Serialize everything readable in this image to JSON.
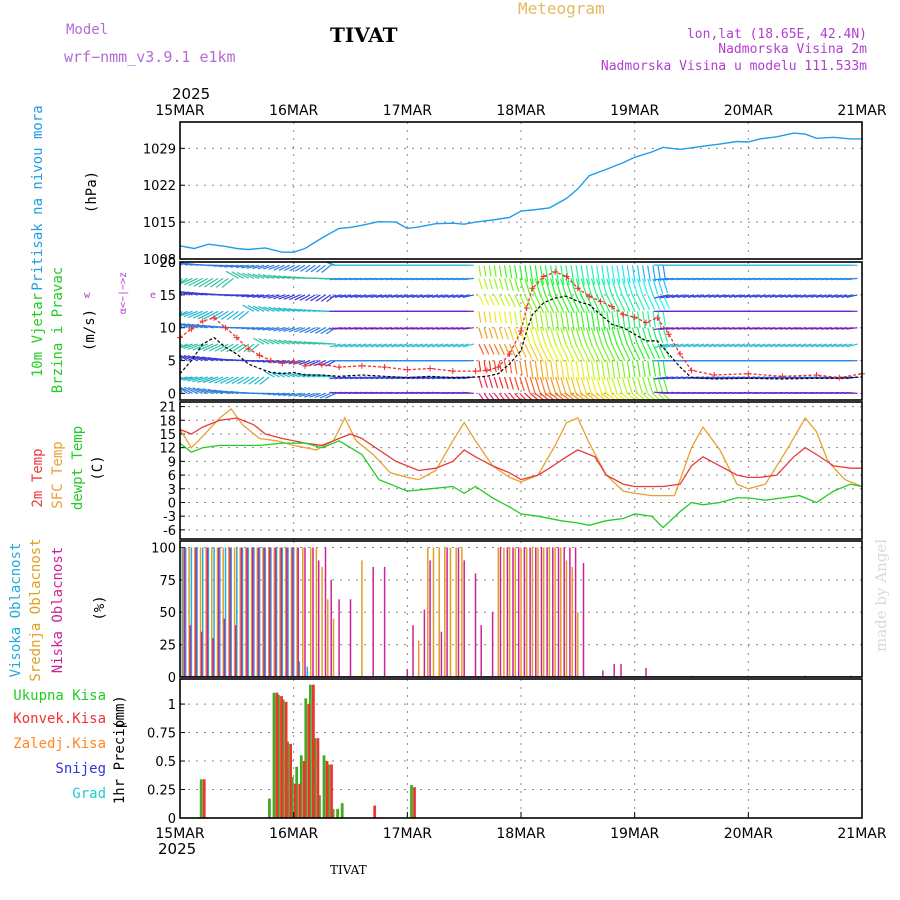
{
  "header": {
    "model_label": "Model",
    "model_name": "wrf−nmm_v3.9.1  e1km",
    "station": "TIVAT",
    "title": "Meteogram",
    "lonlat": "lon,lat (18.65E, 42.4N)",
    "elevation": "Nadmorska Visina 2m",
    "model_elevation": "Nadmorska Visina u modelu 111.533m",
    "footer_station": "TIVAT",
    "credit": "made by Angel"
  },
  "colors": {
    "pressure": "#1f9ee8",
    "wind_speed": "#000000",
    "wind_gust": "#ee3030",
    "temp_2m": "#e83c3c",
    "temp_sfc": "#e8a030",
    "dewpoint": "#22cc22",
    "cloud_high": "#22aadd",
    "cloud_mid": "#e0a020",
    "cloud_low": "#cc2299",
    "precip_total": "#44aa22",
    "precip_conv": "#ee3333",
    "precip_frz": "#ff8822",
    "snow": "#3333dd",
    "hail": "#22cccc"
  },
  "chart_data": [
    {
      "type": "line",
      "panel": "pressure",
      "ylabel": "Pritisak na nivou mora",
      "yunit": "(hPa)",
      "xlabels": [
        "15MAR",
        "16MAR",
        "17MAR",
        "18MAR",
        "19MAR",
        "20MAR",
        "21MAR"
      ],
      "xyear": "2025",
      "ylim": [
        1008,
        1034
      ],
      "yticks": [
        "1008",
        "1015",
        "1022",
        "1029"
      ],
      "grid": true,
      "x_days": [
        0,
        0.125,
        0.25,
        0.4,
        0.5,
        0.6,
        0.75,
        0.9,
        1.0,
        1.1,
        1.25,
        1.4,
        1.5,
        1.6,
        1.75,
        1.9,
        2.0,
        2.1,
        2.25,
        2.4,
        2.5,
        2.6,
        2.75,
        2.9,
        3.0,
        3.1,
        3.25,
        3.4,
        3.5,
        3.6,
        3.75,
        3.9,
        4.0,
        4.15,
        4.25,
        4.4,
        4.6,
        4.75,
        4.9,
        5.0,
        5.1,
        5.25,
        5.4,
        5.5,
        5.6,
        5.75,
        5.9,
        6.0
      ],
      "y": [
        1010.5,
        1010.0,
        1010.8,
        1010.4,
        1010.0,
        1009.8,
        1010.1,
        1009.3,
        1009.3,
        1010.0,
        1012.0,
        1013.8,
        1014.0,
        1014.4,
        1015.1,
        1015.0,
        1013.8,
        1014.1,
        1014.7,
        1014.8,
        1014.6,
        1015.0,
        1015.4,
        1015.9,
        1017.1,
        1017.3,
        1017.7,
        1019.5,
        1021.3,
        1023.8,
        1025.0,
        1026.3,
        1027.3,
        1028.3,
        1029.2,
        1028.8,
        1029.4,
        1029.8,
        1030.3,
        1030.2,
        1030.8,
        1031.2,
        1031.9,
        1031.7,
        1030.9,
        1031.1,
        1030.8,
        1030.8
      ]
    },
    {
      "type": "line",
      "panel": "wind",
      "ylabel": "10m Vjetar",
      "ylabel2": "Brzina i Pravac",
      "yunit": "(m/s)",
      "compass": "α<−|−>z",
      "compass_w": "w",
      "compass_e": "e",
      "ylim": [
        -1,
        20
      ],
      "yticks": [
        "0",
        "5",
        "10",
        "15",
        "20"
      ],
      "grid": true,
      "series": [
        {
          "x": [
            0,
            0.1,
            0.2,
            0.3,
            0.4,
            0.5,
            0.6,
            0.7,
            0.8,
            0.9,
            1.0,
            1.1,
            1.25,
            1.4,
            1.6,
            1.8,
            2.0,
            2.2,
            2.4,
            2.6,
            2.7,
            2.8,
            2.9,
            3.0,
            3.05,
            3.1,
            3.2,
            3.3,
            3.4,
            3.5,
            3.6,
            3.7,
            3.8,
            3.9,
            4.0,
            4.1,
            4.2,
            4.3,
            4.4,
            4.5,
            4.7,
            5.0,
            5.3,
            5.6,
            5.8,
            6.0
          ],
          "y": [
            3.0,
            5.0,
            7.5,
            8.5,
            7.0,
            6.0,
            4.5,
            3.8,
            3.2,
            3.0,
            3.2,
            2.8,
            2.8,
            2.6,
            2.8,
            2.6,
            2.4,
            2.6,
            2.4,
            2.5,
            2.6,
            3.0,
            4.5,
            6.5,
            9.5,
            12.0,
            13.8,
            14.5,
            14.8,
            14.0,
            13.5,
            12.0,
            10.5,
            10.0,
            9.0,
            8.0,
            8.0,
            6.0,
            4.0,
            2.4,
            2.2,
            2.3,
            2.2,
            2.3,
            2.3,
            2.5
          ]
        },
        {
          "x": [
            0,
            0.1,
            0.2,
            0.3,
            0.4,
            0.5,
            0.6,
            0.7,
            0.8,
            0.9,
            1.0,
            1.1,
            1.25,
            1.4,
            1.6,
            1.8,
            2.0,
            2.2,
            2.4,
            2.6,
            2.7,
            2.8,
            2.9,
            3.0,
            3.05,
            3.1,
            3.2,
            3.3,
            3.4,
            3.5,
            3.6,
            3.7,
            3.8,
            3.9,
            4.0,
            4.1,
            4.2,
            4.3,
            4.4,
            4.5,
            4.7,
            5.0,
            5.3,
            5.6,
            5.8,
            6.0
          ],
          "y": [
            8.5,
            9.8,
            11.0,
            11.5,
            10.0,
            8.5,
            6.8,
            5.8,
            5.0,
            4.6,
            4.8,
            4.2,
            4.4,
            4.0,
            4.2,
            4.0,
            3.6,
            3.8,
            3.4,
            3.4,
            3.5,
            4.0,
            6.0,
            9.5,
            13.0,
            16.0,
            17.8,
            18.5,
            17.8,
            16.0,
            14.8,
            14.0,
            13.2,
            12.0,
            11.6,
            10.8,
            11.5,
            9.0,
            6.0,
            3.5,
            2.8,
            3.0,
            2.6,
            2.8,
            2.4,
            3.0
          ]
        }
      ]
    },
    {
      "type": "line",
      "panel": "temperature",
      "ylabel": "2m Temp",
      "ylabel2": "SFC Temp",
      "ylabel3": "dewpt Temp",
      "yunit": "(C)",
      "ylim": [
        -8,
        22
      ],
      "yticks": [
        "-6",
        "-3",
        "0",
        "3",
        "6",
        "9",
        "12",
        "15",
        "18",
        "21"
      ],
      "grid": true,
      "series": [
        {
          "x": [
            0,
            0.1,
            0.2,
            0.35,
            0.5,
            0.65,
            0.75,
            0.9,
            1.0,
            1.1,
            1.25,
            1.4,
            1.5,
            1.6,
            1.75,
            1.9,
            2.0,
            2.1,
            2.25,
            2.4,
            2.5,
            2.6,
            2.75,
            2.9,
            3.0,
            3.15,
            3.25,
            3.4,
            3.5,
            3.65,
            3.75,
            3.9,
            4.0,
            4.1,
            4.25,
            4.4,
            4.5,
            4.6,
            4.75,
            4.9,
            5.0,
            5.1,
            5.25,
            5.4,
            5.5,
            5.6,
            5.75,
            5.9,
            6.0
          ],
          "y": [
            16,
            15,
            16.5,
            18,
            18.5,
            17,
            15,
            14,
            13.5,
            13,
            12.5,
            14,
            15,
            14,
            11.5,
            9,
            8,
            7,
            7.5,
            9,
            11.5,
            10,
            8,
            6.5,
            5,
            6,
            7.5,
            10,
            11.5,
            10,
            6,
            4,
            3.5,
            3.5,
            3.5,
            4,
            8,
            10,
            8,
            6,
            5.5,
            5.5,
            6,
            10,
            12,
            10.5,
            8,
            7.5,
            7.5
          ]
        },
        {
          "x": [
            0,
            0.1,
            0.2,
            0.35,
            0.45,
            0.55,
            0.7,
            0.85,
            1.0,
            1.2,
            1.35,
            1.45,
            1.55,
            1.7,
            1.85,
            2.0,
            2.1,
            2.25,
            2.4,
            2.5,
            2.6,
            2.75,
            2.9,
            3.0,
            3.15,
            3.3,
            3.4,
            3.5,
            3.6,
            3.75,
            3.9,
            4.0,
            4.15,
            4.35,
            4.5,
            4.6,
            4.75,
            4.9,
            5.0,
            5.15,
            5.35,
            5.5,
            5.6,
            5.7,
            5.85,
            6.0
          ],
          "y": [
            16,
            12,
            14.5,
            18.5,
            20.5,
            17,
            14,
            13.5,
            12.5,
            11.5,
            13.5,
            18.5,
            13.5,
            10.5,
            6.5,
            5.5,
            5,
            7,
            13.5,
            17.5,
            13.5,
            8,
            5.5,
            4.5,
            6,
            12.5,
            17.5,
            18.5,
            13,
            6,
            2.5,
            2,
            1.5,
            1.5,
            12,
            16.5,
            11.5,
            4,
            3,
            4,
            12,
            18.5,
            15.5,
            9,
            5,
            3.5
          ]
        },
        {
          "x": [
            0,
            0.1,
            0.2,
            0.35,
            0.5,
            0.7,
            0.9,
            1.1,
            1.25,
            1.4,
            1.5,
            1.6,
            1.75,
            1.85,
            2.0,
            2.2,
            2.4,
            2.5,
            2.6,
            2.75,
            2.9,
            3.0,
            3.15,
            3.35,
            3.5,
            3.6,
            3.75,
            3.9,
            4.0,
            4.15,
            4.25,
            4.4,
            4.5,
            4.6,
            4.75,
            4.9,
            5.0,
            5.15,
            5.3,
            5.45,
            5.6,
            5.75,
            5.9,
            6.0
          ],
          "y": [
            13,
            11,
            12,
            12.5,
            12.5,
            12.5,
            13,
            13,
            12,
            13.5,
            12,
            10.5,
            5,
            4,
            2.5,
            3,
            3.5,
            2,
            3.5,
            1,
            -1,
            -2.5,
            -3,
            -4,
            -4.5,
            -5,
            -4,
            -3.5,
            -2.5,
            -3,
            -5.5,
            -2,
            0,
            -0.5,
            0,
            1,
            1,
            0.5,
            1,
            1.5,
            0,
            2.5,
            4,
            3.5
          ]
        }
      ]
    },
    {
      "type": "bar",
      "panel": "cloud",
      "ylabel": "Visoka Oblacnost",
      "ylabel2": "Srednja Oblacnost",
      "ylabel3": "Niska Oblacnost",
      "yunit": "(%)",
      "ylim": [
        0,
        105
      ],
      "yticks": [
        "0",
        "25",
        "50",
        "75",
        "100"
      ],
      "grid": true,
      "series": [
        {
          "name": "Visoka Oblacnost",
          "x": [
            0.02,
            0.05,
            0.1,
            0.15,
            0.2,
            0.25,
            0.3,
            0.35,
            0.4,
            0.45,
            0.5,
            0.55,
            0.6,
            0.65,
            0.7,
            0.75,
            0.8,
            0.85,
            0.9,
            0.95,
            1.0,
            1.05,
            1.12
          ],
          "values": [
            100,
            100,
            100,
            100,
            100,
            100,
            100,
            100,
            100,
            100,
            100,
            100,
            100,
            100,
            100,
            100,
            100,
            100,
            100,
            100,
            100,
            12,
            8
          ]
        },
        {
          "name": "Srednja Oblacnost",
          "x": [
            0.03,
            0.08,
            0.13,
            0.18,
            0.23,
            0.28,
            0.33,
            0.38,
            0.43,
            0.48,
            0.53,
            0.58,
            0.63,
            0.68,
            0.73,
            0.78,
            0.83,
            0.88,
            0.93,
            0.98,
            1.03,
            1.08,
            1.15,
            1.2,
            1.25,
            1.3,
            1.35,
            1.6,
            2.1,
            2.18,
            2.23,
            2.28,
            2.33,
            2.38,
            2.43,
            2.48,
            2.8,
            2.85,
            2.9,
            2.95,
            3.0,
            3.05,
            3.1,
            3.15,
            3.2,
            3.25,
            3.3,
            3.35,
            3.4,
            3.45,
            3.5
          ],
          "values": [
            100,
            100,
            100,
            100,
            100,
            100,
            100,
            100,
            100,
            100,
            100,
            100,
            100,
            100,
            100,
            100,
            100,
            100,
            100,
            100,
            100,
            100,
            100,
            100,
            85,
            60,
            45,
            90,
            28,
            100,
            100,
            100,
            100,
            100,
            100,
            100,
            100,
            100,
            100,
            100,
            100,
            100,
            100,
            100,
            100,
            100,
            100,
            100,
            90,
            85,
            50
          ]
        },
        {
          "name": "Niska Oblacnost",
          "x": [
            0.04,
            0.09,
            0.14,
            0.19,
            0.24,
            0.29,
            0.34,
            0.39,
            0.44,
            0.49,
            0.54,
            0.59,
            0.64,
            0.69,
            0.74,
            0.79,
            0.84,
            0.89,
            0.94,
            0.99,
            1.04,
            1.1,
            1.17,
            1.22,
            1.28,
            1.33,
            1.4,
            1.5,
            1.7,
            1.8,
            2.0,
            2.05,
            2.15,
            2.2,
            2.3,
            2.35,
            2.45,
            2.5,
            2.6,
            2.65,
            2.75,
            2.82,
            2.88,
            2.93,
            2.98,
            3.03,
            3.08,
            3.13,
            3.18,
            3.23,
            3.28,
            3.33,
            3.38,
            3.43,
            3.48,
            3.55,
            3.72,
            3.82,
            3.88,
            4.1,
            4.5,
            5.0,
            5.5,
            5.9
          ],
          "values": [
            100,
            40,
            100,
            35,
            100,
            30,
            100,
            45,
            100,
            40,
            100,
            100,
            100,
            100,
            100,
            100,
            100,
            100,
            100,
            100,
            100,
            100,
            100,
            90,
            100,
            75,
            60,
            60,
            85,
            85,
            6,
            40,
            52,
            90,
            35,
            100,
            100,
            90,
            80,
            40,
            50,
            100,
            100,
            100,
            100,
            100,
            100,
            100,
            100,
            100,
            100,
            100,
            100,
            100,
            100,
            88,
            5,
            10,
            10,
            7,
            1,
            1,
            1,
            1
          ]
        }
      ]
    },
    {
      "type": "bar",
      "panel": "precip",
      "ylabel": "1hr Precip",
      "yunit": "(mm)",
      "ylim": [
        0,
        1.22
      ],
      "yticks": [
        "0",
        "0.25",
        "0.5",
        "0.75",
        "1"
      ],
      "grid": true,
      "legend": [
        "Ukupna Kisa",
        "Konvek.Kisa",
        "Zaledj.Kisa",
        "Snijeg",
        "Grad"
      ],
      "series": [
        {
          "name": "Ukupna Kisa",
          "x": [
            0.2,
            0.8,
            0.84,
            0.88,
            0.92,
            0.96,
            1.0,
            1.04,
            1.08,
            1.12,
            1.16,
            1.2,
            1.24,
            1.28,
            1.32,
            1.36,
            1.4,
            1.44,
            1.48,
            1.7,
            2.05
          ],
          "values": [
            0.34,
            0.17,
            1.1,
            1.08,
            1.04,
            0.67,
            0.36,
            0.45,
            0.55,
            1.05,
            1.17,
            0.7,
            0.2,
            0.55,
            0.47,
            0.08,
            0.08,
            0.13,
            0.0,
            0.0,
            0.29
          ]
        },
        {
          "name": "Konvek.Kisa",
          "x": [
            0.2,
            0.84,
            0.88,
            0.92,
            0.96,
            1.0,
            1.04,
            1.08,
            1.12,
            1.16,
            1.2,
            1.28,
            1.32,
            1.7,
            2.05
          ],
          "values": [
            0.34,
            1.1,
            1.07,
            1.02,
            0.65,
            0.3,
            0.3,
            0.5,
            1.0,
            1.17,
            0.7,
            0.5,
            0.47,
            0.11,
            0.27
          ]
        }
      ]
    }
  ]
}
